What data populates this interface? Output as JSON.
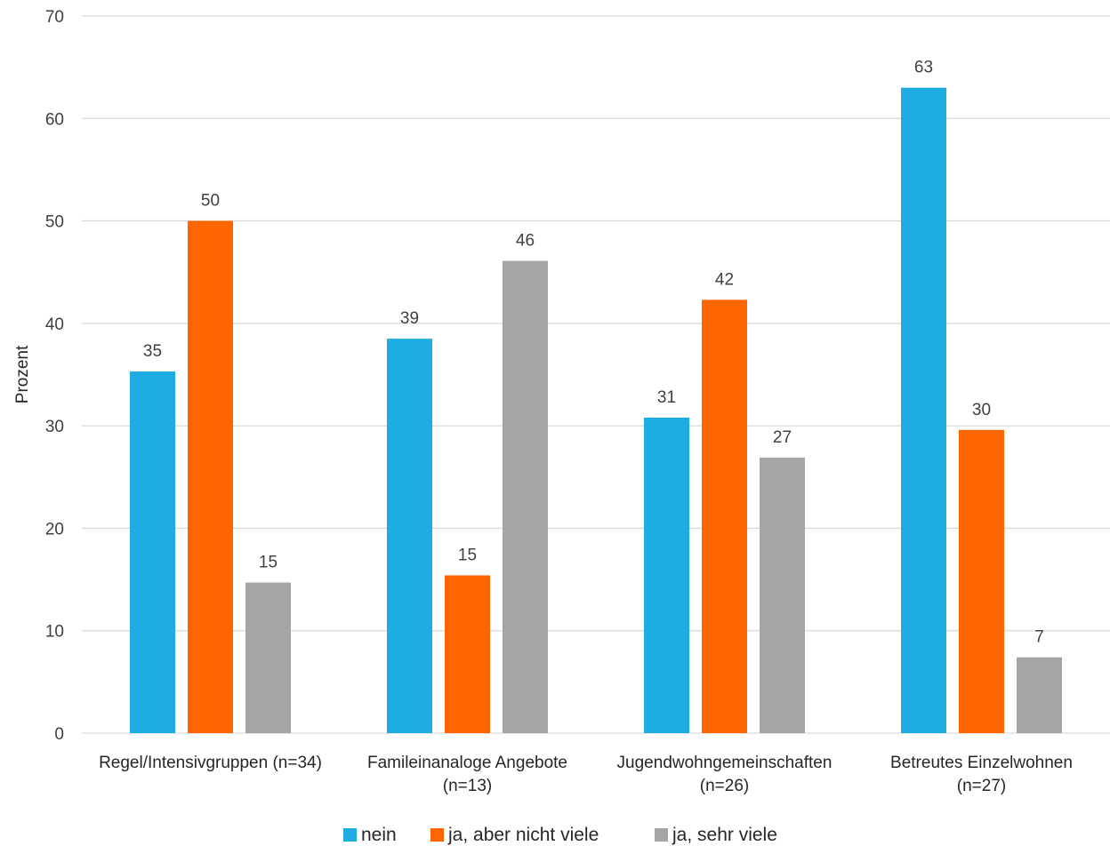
{
  "chart_data": {
    "type": "bar",
    "ylabel": "Prozent",
    "ylim": [
      0,
      70
    ],
    "yticks": [
      0,
      10,
      20,
      30,
      40,
      50,
      60,
      70
    ],
    "grid": true,
    "legend_position": "bottom",
    "categories": [
      [
        "Regel/Intensivgruppen (n=34)"
      ],
      [
        "Famileinanaloge Angebote",
        "(n=13)"
      ],
      [
        "Jugendwohngemeinschaften",
        "(n=26)"
      ],
      [
        "Betreutes Einzelwohnen",
        "(n=27)"
      ]
    ],
    "series": [
      {
        "name": "nein",
        "color": "#1DADE2",
        "values": [
          35.3,
          38.5,
          30.8,
          63.0
        ],
        "labels": [
          "35",
          "39",
          "31",
          "63"
        ]
      },
      {
        "name": "ja, aber nicht viele",
        "color": "#FF6600",
        "values": [
          50.0,
          15.4,
          42.3,
          29.6
        ],
        "labels": [
          "50",
          "15",
          "42",
          "30"
        ]
      },
      {
        "name": "ja, sehr viele",
        "color": "#A5A5A5",
        "values": [
          14.7,
          46.1,
          26.9,
          7.4
        ],
        "labels": [
          "15",
          "46",
          "27",
          "7"
        ]
      }
    ]
  }
}
